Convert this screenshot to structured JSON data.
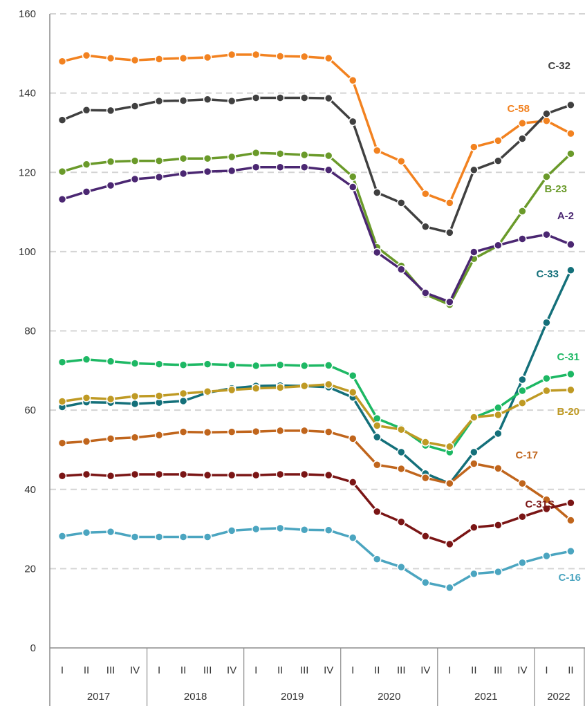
{
  "chart_data": {
    "type": "line",
    "title": "",
    "xlabel": "",
    "ylabel": "",
    "ylim": [
      0,
      160
    ],
    "yticks": [
      0,
      20,
      40,
      60,
      80,
      100,
      120,
      140,
      160
    ],
    "grid": "horizontal dashed",
    "categories": [
      "I",
      "II",
      "III",
      "IV",
      "I",
      "II",
      "III",
      "IV",
      "I",
      "II",
      "III",
      "IV",
      "I",
      "II",
      "III",
      "IV",
      "I",
      "II",
      "III",
      "IV",
      "I",
      "II"
    ],
    "year_groups": [
      {
        "label": "2017",
        "quarters": 4
      },
      {
        "label": "2018",
        "quarters": 4
      },
      {
        "label": "2019",
        "quarters": 4
      },
      {
        "label": "2020",
        "quarters": 4
      },
      {
        "label": "2021",
        "quarters": 4
      },
      {
        "label": "2022",
        "quarters": 2
      }
    ],
    "series": [
      {
        "name": "C-58",
        "color": "#F28220",
        "values": [
          148,
          149.5,
          148.8,
          148.3,
          148.6,
          148.8,
          149,
          149.7,
          149.7,
          149.3,
          149.2,
          148.8,
          143.2,
          125.5,
          122.8,
          114.6,
          112.3,
          126.4,
          128,
          132.4,
          133,
          129.8
        ]
      },
      {
        "name": "C-32",
        "color": "#404040",
        "values": [
          133.2,
          135.7,
          135.6,
          136.7,
          138,
          138.1,
          138.4,
          138,
          138.8,
          138.8,
          138.8,
          138.7,
          132.8,
          114.9,
          112.3,
          106.3,
          104.8,
          120.6,
          122.9,
          128.5,
          134.8,
          137
        ]
      },
      {
        "name": "B-23",
        "color": "#6A9A2A",
        "values": [
          120.2,
          122,
          122.7,
          122.9,
          122.9,
          123.5,
          123.5,
          123.9,
          124.9,
          124.7,
          124.4,
          124.2,
          118.9,
          101.1,
          96.4,
          89.2,
          86.6,
          98.2,
          101.5,
          110.2,
          118.9,
          124.7
        ]
      },
      {
        "name": "A-2",
        "color": "#4B2772",
        "values": [
          113.2,
          115.1,
          116.7,
          118.3,
          118.8,
          119.7,
          120.2,
          120.4,
          121.3,
          121.3,
          121.3,
          120.6,
          116.3,
          99.8,
          95.5,
          89.6,
          87.3,
          99.9,
          101.6,
          103.2,
          104.3,
          101.8
        ]
      },
      {
        "name": "C-33",
        "color": "#14707A",
        "values": [
          60.8,
          62,
          61.9,
          61.6,
          61.9,
          62.3,
          64.4,
          65.5,
          66.1,
          66.2,
          66.1,
          65.8,
          63.2,
          53.2,
          49.4,
          44,
          41.5,
          49.4,
          54.1,
          67.7,
          82.1,
          95.3
        ]
      },
      {
        "name": "C-31",
        "color": "#1DB864",
        "values": [
          72.1,
          72.8,
          72.3,
          71.8,
          71.6,
          71.4,
          71.6,
          71.4,
          71.2,
          71.4,
          71.2,
          71.3,
          68.7,
          57.9,
          55.4,
          51.1,
          49.4,
          58.1,
          60.6,
          64.9,
          68,
          69.1
        ]
      },
      {
        "name": "B-20",
        "color": "#BF9A24",
        "values": [
          62.2,
          63.1,
          62.8,
          63.5,
          63.6,
          64.2,
          64.7,
          65.1,
          65.5,
          65.7,
          66.1,
          66.5,
          64.5,
          56.1,
          55.1,
          51.9,
          50.8,
          58.2,
          58.8,
          61.8,
          64.9,
          65.1
        ]
      },
      {
        "name": "C-17",
        "color": "#C0651C",
        "values": [
          51.7,
          52.1,
          52.8,
          53.1,
          53.7,
          54.5,
          54.4,
          54.5,
          54.6,
          54.8,
          54.8,
          54.5,
          52.8,
          46.2,
          45.2,
          42.9,
          41.5,
          46.5,
          45.3,
          41.5,
          37.4,
          32.2
        ]
      },
      {
        "name": "C-31S",
        "color": "#7A1515",
        "values": [
          43.4,
          43.8,
          43.4,
          43.8,
          43.8,
          43.8,
          43.6,
          43.6,
          43.6,
          43.8,
          43.8,
          43.6,
          41.8,
          34.4,
          31.8,
          28.2,
          26.2,
          30.4,
          31,
          33.1,
          35.1,
          36.6
        ]
      },
      {
        "name": "C-16",
        "color": "#4BA5C0",
        "values": [
          28.2,
          29.1,
          29.3,
          28,
          28,
          28,
          28,
          29.6,
          30,
          30.2,
          29.8,
          29.7,
          27.8,
          22.4,
          20.4,
          16.5,
          15.2,
          18.7,
          19.2,
          21.5,
          23.2,
          24.4
        ]
      }
    ]
  }
}
